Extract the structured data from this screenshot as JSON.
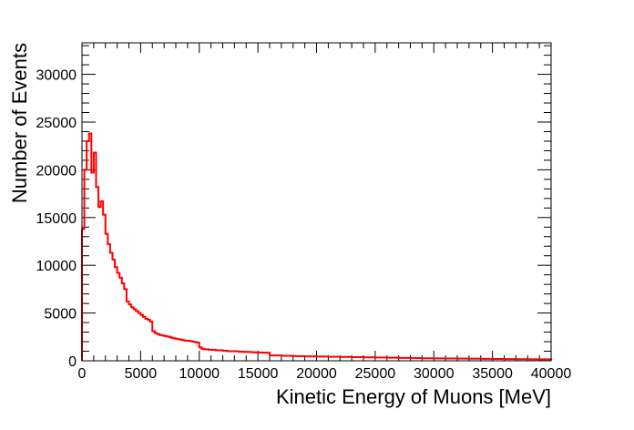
{
  "chart_data": {
    "type": "histogram",
    "title": "",
    "xlabel": "Kinetic Energy of Muons [MeV]",
    "ylabel": "Number of Events",
    "xlim": [
      0,
      40000
    ],
    "ylim": [
      0,
      33300
    ],
    "grid": false,
    "legend": "none",
    "line_color": "#ff0000",
    "frame_color": "#000000",
    "x_ticks": [
      0,
      5000,
      10000,
      15000,
      20000,
      25000,
      30000,
      35000,
      40000
    ],
    "x_tick_labels": [
      "0",
      "5000",
      "10000",
      "15000",
      "20000",
      "25000",
      "30000",
      "35000",
      "40000"
    ],
    "y_ticks": [
      0,
      5000,
      10000,
      15000,
      20000,
      25000,
      30000
    ],
    "y_tick_labels": [
      "0",
      "5000",
      "10000",
      "15000",
      "20000",
      "25000",
      "30000"
    ],
    "bin_edges": [
      0,
      200,
      400,
      600,
      800,
      1000,
      1200,
      1400,
      1600,
      1800,
      2000,
      2200,
      2400,
      2600,
      2800,
      3000,
      3200,
      3400,
      3600,
      3800,
      4000,
      4200,
      4400,
      4600,
      4800,
      5000,
      5200,
      5400,
      5600,
      5800,
      6000,
      6200,
      6400,
      6600,
      6800,
      7000,
      7200,
      7400,
      7600,
      7800,
      8000,
      8200,
      8400,
      8600,
      8800,
      9000,
      9200,
      9400,
      9600,
      9800,
      10000,
      10200,
      10400,
      10600,
      10800,
      11000,
      11200,
      11400,
      11600,
      11800,
      12000,
      12200,
      12400,
      12600,
      12800,
      13000,
      13200,
      13400,
      13600,
      13800,
      14000,
      14200,
      14400,
      14600,
      14800,
      15000,
      15200,
      15400,
      15600,
      15800,
      16000,
      17000,
      18000,
      19000,
      20000,
      21000,
      22000,
      23000,
      24000,
      25000,
      26000,
      27000,
      28000,
      29000,
      30000,
      31000,
      32000,
      33000,
      34000,
      35000,
      36000,
      37000,
      38000,
      39000,
      40000
    ],
    "values": [
      13800,
      20000,
      23000,
      23800,
      19700,
      21800,
      18200,
      16100,
      16700,
      15300,
      13300,
      12200,
      11300,
      10600,
      9800,
      9200,
      8700,
      8100,
      7500,
      6200,
      5900,
      5600,
      5400,
      5200,
      5000,
      4800,
      4600,
      4400,
      4300,
      4100,
      3100,
      2900,
      2800,
      2700,
      2650,
      2600,
      2550,
      2500,
      2400,
      2350,
      2300,
      2250,
      2200,
      2150,
      2100,
      2100,
      2050,
      2000,
      1950,
      1900,
      1400,
      1250,
      1200,
      1200,
      1150,
      1150,
      1150,
      1100,
      1100,
      1100,
      1050,
      1050,
      1000,
      1000,
      1000,
      1000,
      980,
      950,
      950,
      930,
      930,
      920,
      900,
      880,
      880,
      870,
      860,
      850,
      850,
      840,
      560,
      520,
      480,
      460,
      440,
      420,
      400,
      380,
      360,
      340,
      320,
      300,
      280,
      260,
      250,
      240,
      230,
      220,
      200,
      190,
      180,
      170,
      160,
      150
    ]
  }
}
